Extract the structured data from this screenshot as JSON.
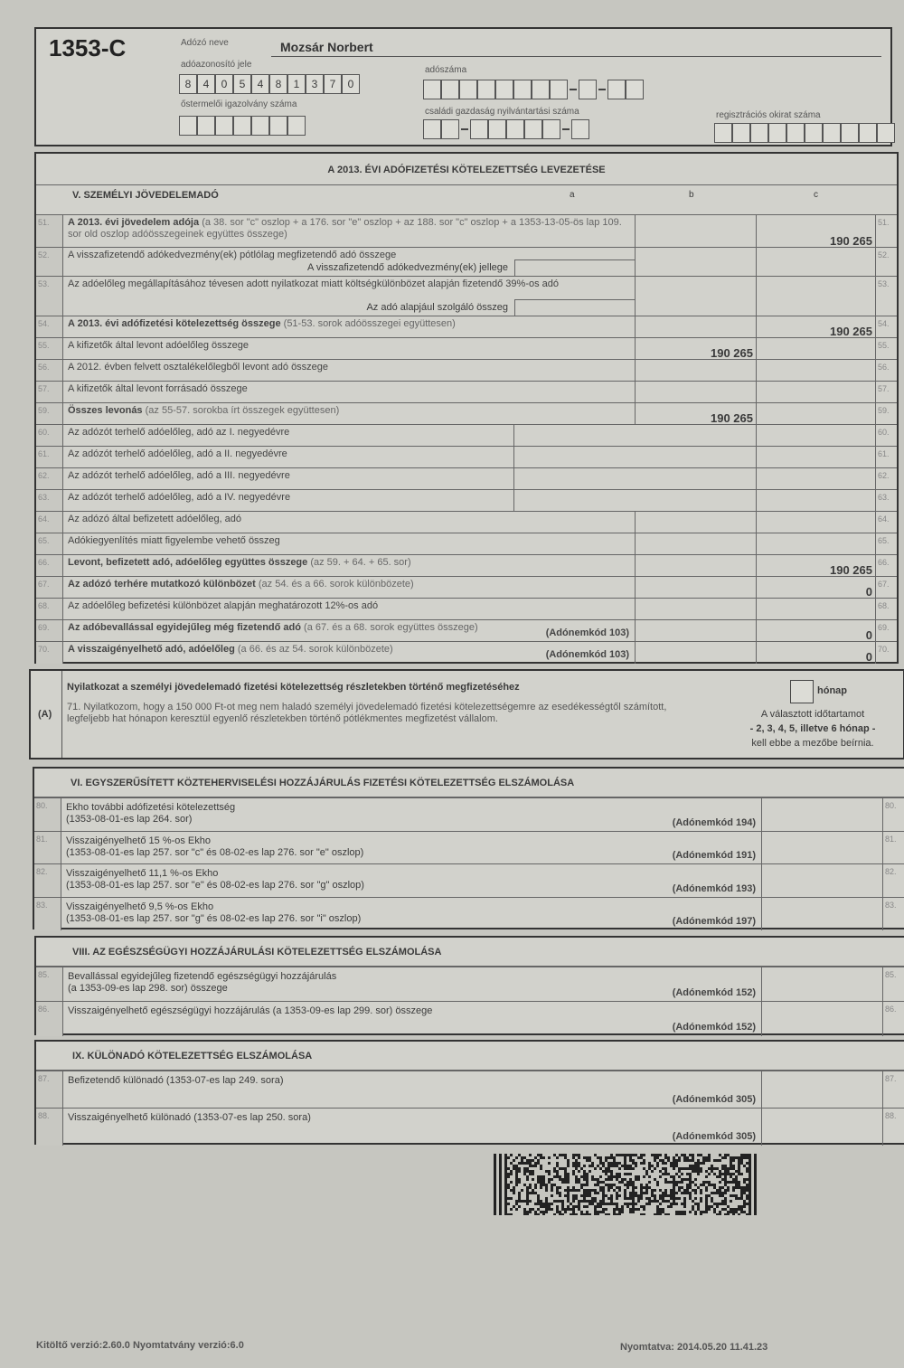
{
  "header": {
    "form_id": "1353-C",
    "name_label": "Adózó neve",
    "name_value": "Mozsár Norbert",
    "taxid_label": "adóazonosító jele",
    "taxid_digits": [
      "8",
      "4",
      "0",
      "5",
      "4",
      "8",
      "1",
      "3",
      "7",
      "0"
    ],
    "taxnum_label": "adószáma",
    "refugee_label": "őstermelői igazolvány száma",
    "family_label": "családi gazdaság nyilvántartási száma",
    "reg_label": "regisztrációs okirat száma"
  },
  "main": {
    "title": "A 2013. ÉVI ADÓFIZETÉSI KÖTELEZETTSÉG LEVEZETÉSE",
    "section": "V. SZEMÉLYI JÖVEDELEMADÓ",
    "col_a": "a",
    "col_b": "b",
    "col_c": "c",
    "rows": [
      {
        "num": "51.",
        "label": "A 2013. évi jövedelem adója",
        "note": "(a 38. sor \"c\" oszlop + a 176. sor \"e\" oszlop + az 188. sor \"c\" oszlop + a 1353-13-05-ös lap 109. sor old oszlop adóösszegeinek együttes összege)",
        "bold": true,
        "c": "190 265"
      },
      {
        "num": "52.",
        "label": "A visszafizetendő adókedvezmény(ek) pótlólag megfizetendő adó összege",
        "sub": "A visszafizetendő adókedvezmény(ek) jellege"
      },
      {
        "num": "53.",
        "label": "Az adóelőleg megállapításához tévesen adott nyilatkozat miatt költségkülönbözet alapján fizetendő 39%-os adó",
        "sub": "Az adó alapjául szolgáló összeg"
      },
      {
        "num": "54.",
        "label": "A 2013. évi adófizetési kötelezettség összege",
        "note": "(51-53. sorok adóösszegei együttesen)",
        "bold": true,
        "c": "190 265"
      },
      {
        "num": "55.",
        "label": "A kifizetők által levont adóelőleg összege",
        "b": "190 265"
      },
      {
        "num": "56.",
        "label": "A 2012. évben felvett osztalékelőlegből levont adó összege"
      },
      {
        "num": "57.",
        "label": "A kifizetők által levont forrásadó összege"
      },
      {
        "num": "59.",
        "label": "Összes levonás",
        "note": "(az 55-57. sorokba írt összegek együttesen)",
        "bold": true,
        "b": "190 265"
      },
      {
        "num": "60.",
        "label": "Az adózót terhelő adóelőleg, adó az I. negyedévre"
      },
      {
        "num": "61.",
        "label": "Az adózót terhelő adóelőleg, adó a II. negyedévre"
      },
      {
        "num": "62.",
        "label": "Az adózót terhelő adóelőleg, adó a III. negyedévre"
      },
      {
        "num": "63.",
        "label": "Az adózót terhelő adóelőleg, adó a IV. negyedévre"
      },
      {
        "num": "64.",
        "label": "Az adózó által befizetett adóelőleg, adó"
      },
      {
        "num": "65.",
        "label": "Adókiegyenlítés miatt figyelembe vehető összeg"
      },
      {
        "num": "66.",
        "label": "Levont, befizetett adó, adóelőleg együttes összege",
        "note": "(az 59. + 64. + 65. sor)",
        "bold": true,
        "c": "190 265"
      },
      {
        "num": "67.",
        "label": "Az adózó terhére mutatkozó különbözet",
        "note": "(az 54. és a 66. sorok különbözete)",
        "bold": true,
        "c": "0"
      },
      {
        "num": "68.",
        "label": "Az adóelőleg befizetési különbözet alapján meghatározott 12%-os adó"
      },
      {
        "num": "69.",
        "label": "Az adóbevallással egyidejűleg még fizetendő adó",
        "note": "(a 67. és a 68. sorok együttes összege)",
        "code": "(Adónemkód 103)",
        "bold": true,
        "c": "0"
      },
      {
        "num": "70.",
        "label": "A visszaigényelhető adó, adóelőleg",
        "note": "(a 66. és az 54. sorok különbözete)",
        "code": "(Adónemkód 103)",
        "bold": true,
        "c": "0"
      }
    ]
  },
  "decl": {
    "tag": "(A)",
    "title": "Nyilatkozat a személyi jövedelemadó fizetési kötelezettség részletekben történő megfizetéséhez",
    "text": "71. Nyilatkozom, hogy a 150 000 Ft-ot meg nem haladó személyi jövedelemadó fizetési kötelezettségemre az esedékességtől számított, legfeljebb hat hónapon keresztül egyenlő részletekben történő pótlékmentes megfizetést vállalom.",
    "month_label": "hónap",
    "hint1": "A választott időtartamot",
    "hint2": "- 2, 3, 4, 5, illetve 6 hónap -",
    "hint3": "kell ebbe a mezőbe beírnia."
  },
  "sections": [
    {
      "title": "VI. EGYSZERŰSÍTETT KÖZTEHERVISELÉSI HOZZÁJÁRULÁS FIZETÉSI KÖTELEZETTSÉG ELSZÁMOLÁSA",
      "rows": [
        {
          "num": "80.",
          "label": "Ekho további adófizetési kötelezettség",
          "label2": "(1353-08-01-es lap 264. sor)",
          "code": "(Adónemkód 194)"
        },
        {
          "num": "81.",
          "label": "Visszaigényelhető 15 %-os Ekho",
          "label2": "(1353-08-01-es lap 257. sor \"c\" és 08-02-es lap 276. sor \"e\" oszlop)",
          "code": "(Adónemkód 191)"
        },
        {
          "num": "82.",
          "label": "Visszaigényelhető 11,1 %-os Ekho",
          "label2": "(1353-08-01-es lap 257. sor \"e\" és 08-02-es lap 276. sor \"g\" oszlop)",
          "code": "(Adónemkód 193)"
        },
        {
          "num": "83.",
          "label": "Visszaigényelhető 9,5 %-os Ekho",
          "label2": "(1353-08-01-es lap 257. sor \"g\" és 08-02-es lap 276. sor \"i\" oszlop)",
          "code": "(Adónemkód 197)"
        }
      ]
    },
    {
      "title": "VIII. AZ EGÉSZSÉGÜGYI HOZZÁJÁRULÁSI KÖTELEZETTSÉG ELSZÁMOLÁSA",
      "rows": [
        {
          "num": "85.",
          "label": "Bevallással egyidejűleg fizetendő egészségügyi hozzájárulás",
          "label2": "(a 1353-09-es lap 298. sor) összege",
          "code": "(Adónemkód 152)"
        },
        {
          "num": "86.",
          "label": "Visszaigényelhető egészségügyi hozzájárulás (a 1353-09-es lap 299. sor) összege",
          "code": "(Adónemkód 152)"
        }
      ]
    },
    {
      "title": "IX. KÜLÖNADÓ KÖTELEZETTSÉG ELSZÁMOLÁSA",
      "rows": [
        {
          "num": "87.",
          "label": "Befizetendő különadó (1353-07-es lap 249. sora)",
          "code": "(Adónemkód 305)"
        },
        {
          "num": "88.",
          "label": "Visszaigényelhető különadó (1353-07-es lap 250. sora)",
          "code": "(Adónemkód 305)"
        }
      ]
    }
  ],
  "footer": {
    "left": "Kitöltő verzió:2.60.0 Nyomtatvány verzió:6.0",
    "right": "Nyomtatva: 2014.05.20 11.41.23"
  }
}
